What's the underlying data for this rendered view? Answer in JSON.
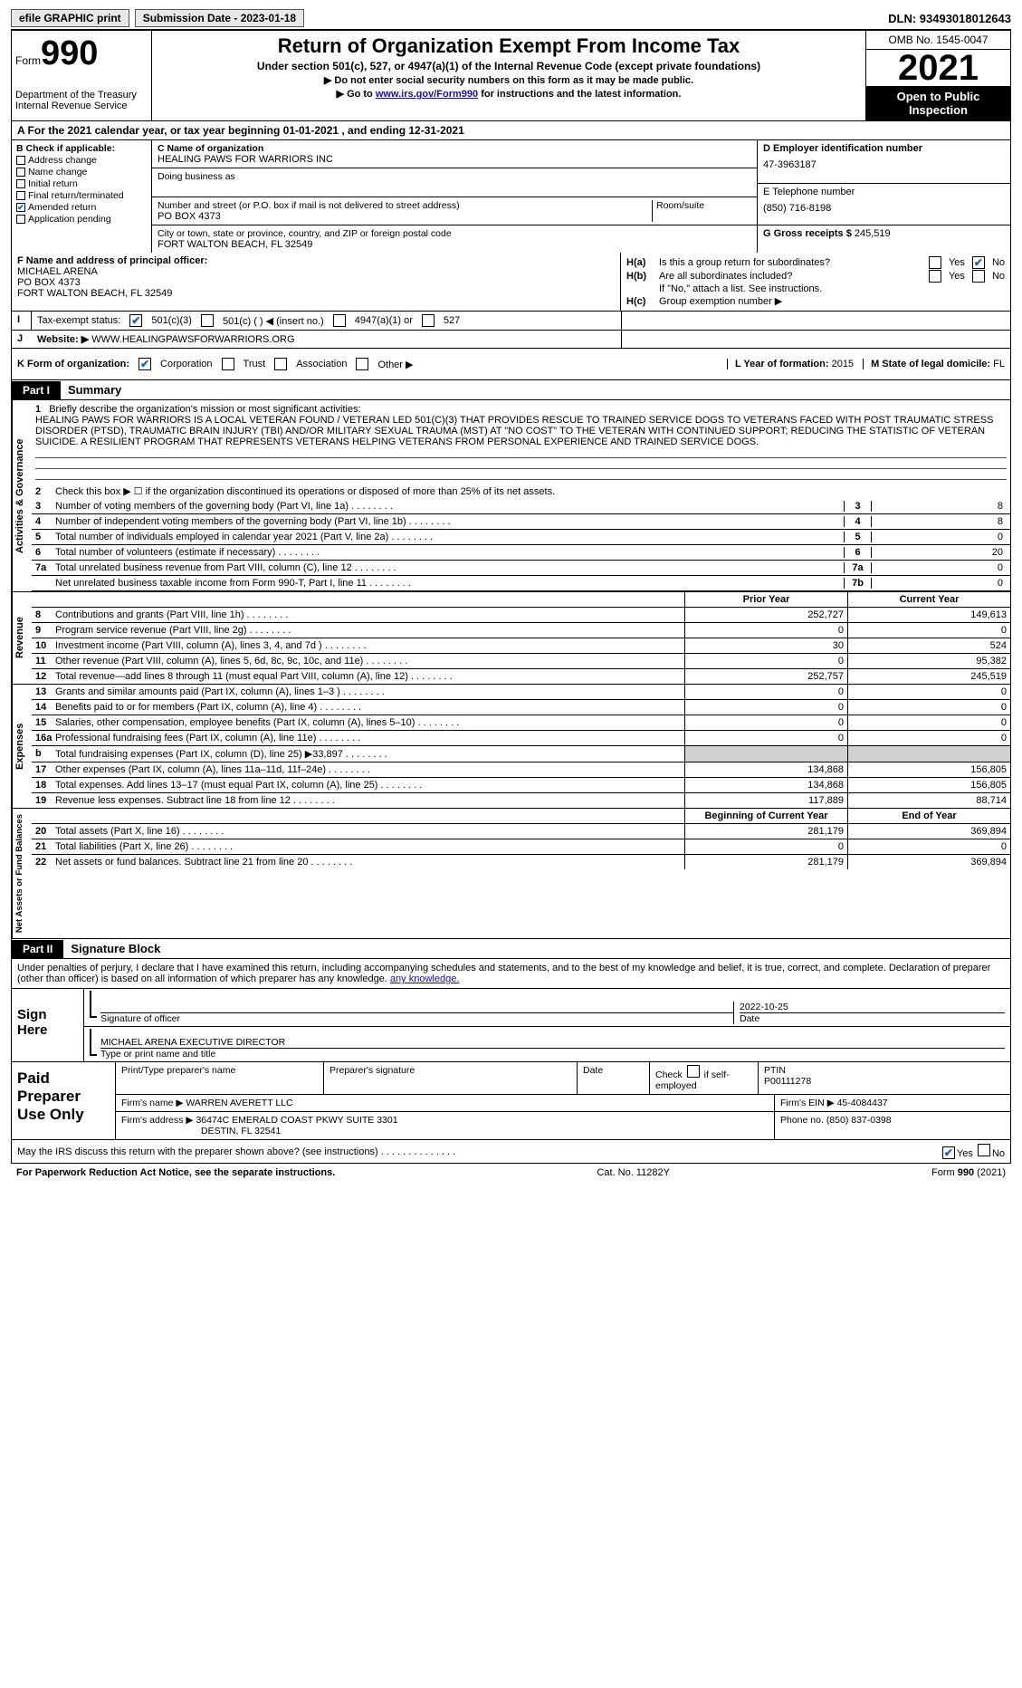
{
  "topbar": {
    "efile": "efile GRAPHIC print",
    "submission": "Submission Date - 2023-01-18",
    "dln": "DLN: 93493018012643"
  },
  "header": {
    "form_word": "Form",
    "form_num": "990",
    "dept": "Department of the Treasury",
    "irs": "Internal Revenue Service",
    "title": "Return of Organization Exempt From Income Tax",
    "subtitle": "Under section 501(c), 527, or 4947(a)(1) of the Internal Revenue Code (except private foundations)",
    "instr1": "▶ Do not enter social security numbers on this form as it may be made public.",
    "instr2_pre": "▶ Go to ",
    "instr2_link": "www.irs.gov/Form990",
    "instr2_post": " for instructions and the latest information.",
    "omb": "OMB No. 1545-0047",
    "year": "2021",
    "otp": "Open to Public Inspection"
  },
  "line_a": "A For the 2021 calendar year, or tax year beginning 01-01-2021    , and ending 12-31-2021",
  "col_b": {
    "hdr": "B Check if applicable:",
    "items": [
      "Address change",
      "Name change",
      "Initial return",
      "Final return/terminated",
      "Amended return",
      "Application pending"
    ],
    "checked_idx": 4
  },
  "col_c": {
    "name_lbl": "C Name of organization",
    "name": "HEALING PAWS FOR WARRIORS INC",
    "dba_lbl": "Doing business as",
    "street_lbl": "Number and street (or P.O. box if mail is not delivered to street address)",
    "street": "PO BOX 4373",
    "room_lbl": "Room/suite",
    "city_lbl": "City or town, state or province, country, and ZIP or foreign postal code",
    "city": "FORT WALTON BEACH, FL  32549"
  },
  "col_d": {
    "ein_lbl": "D Employer identification number",
    "ein": "47-3963187",
    "phone_lbl": "E Telephone number",
    "phone": "(850) 716-8198",
    "gross_lbl": "G Gross receipts $",
    "gross": "245,519"
  },
  "col_f": {
    "lbl": "F Name and address of principal officer:",
    "name": "MICHAEL ARENA",
    "addr1": "PO BOX 4373",
    "addr2": "FORT WALTON BEACH, FL  32549"
  },
  "col_h": {
    "ha_lbl": "H(a)",
    "ha_q": "Is this a group return for subordinates?",
    "hb_lbl": "H(b)",
    "hb_q": "Are all subordinates included?",
    "note": "If \"No,\" attach a list. See instructions.",
    "hc_lbl": "H(c)",
    "hc_q": "Group exemption number ▶",
    "yes": "Yes",
    "no": "No"
  },
  "tax_status": {
    "lbl_i": "I",
    "lbl": "Tax-exempt status:",
    "opts": [
      "501(c)(3)",
      "501(c) (  ) ◀ (insert no.)",
      "4947(a)(1) or",
      "527"
    ]
  },
  "j_row": {
    "lbl": "J",
    "web_lbl": "Website: ▶",
    "web": "WWW.HEALINGPAWSFORWARRIORS.ORG"
  },
  "k_row": {
    "lbl": "K Form of organization:",
    "opts": [
      "Corporation",
      "Trust",
      "Association",
      "Other ▶"
    ],
    "checked_idx": 0,
    "l_lbl": "L Year of formation:",
    "l_val": "2015",
    "m_lbl": "M State of legal domicile:",
    "m_val": "FL"
  },
  "part1": {
    "tag": "Part I",
    "title": "Summary"
  },
  "vtabs": [
    "Activities & Governance",
    "Revenue",
    "Expenses",
    "Net Assets or Fund Balances"
  ],
  "mission": {
    "num": "1",
    "lbl": "Briefly describe the organization's mission or most significant activities:",
    "text": "HEALING PAWS FOR WARRIORS IS A LOCAL VETERAN FOUND / VETERAN LED 501(C)(3) THAT PROVIDES RESCUE TO TRAINED SERVICE DOGS TO VETERANS FACED WITH POST TRAUMATIC STRESS DISORDER (PTSD), TRAUMATIC BRAIN INJURY (TBI) AND/OR MILITARY SEXUAL TRAUMA (MST) AT \"NO COST\" TO THE VETERAN WITH CONTINUED SUPPORT; REDUCING THE STATISTIC OF VETERAN SUICIDE. A RESILIENT PROGRAM THAT REPRESENTS VETERANS HELPING VETERANS FROM PERSONAL EXPERIENCE AND TRAINED SERVICE DOGS."
  },
  "gov_rows": [
    {
      "n": "2",
      "t": "Check this box ▶ ☐  if the organization discontinued its operations or disposed of more than 25% of its net assets.",
      "c": "",
      "v": ""
    },
    {
      "n": "3",
      "t": "Number of voting members of the governing body (Part VI, line 1a)",
      "c": "3",
      "v": "8"
    },
    {
      "n": "4",
      "t": "Number of independent voting members of the governing body (Part VI, line 1b)",
      "c": "4",
      "v": "8"
    },
    {
      "n": "5",
      "t": "Total number of individuals employed in calendar year 2021 (Part V, line 2a)",
      "c": "5",
      "v": "0"
    },
    {
      "n": "6",
      "t": "Total number of volunteers (estimate if necessary)",
      "c": "6",
      "v": "20"
    },
    {
      "n": "7a",
      "t": "Total unrelated business revenue from Part VIII, column (C), line 12",
      "c": "7a",
      "v": "0"
    },
    {
      "n": "",
      "t": "Net unrelated business taxable income from Form 990-T, Part I, line 11",
      "c": "7b",
      "v": "0"
    }
  ],
  "rev_hdr": {
    "prior": "Prior Year",
    "curr": "Current Year"
  },
  "rev_rows": [
    {
      "n": "8",
      "t": "Contributions and grants (Part VIII, line 1h)",
      "p": "252,727",
      "c": "149,613"
    },
    {
      "n": "9",
      "t": "Program service revenue (Part VIII, line 2g)",
      "p": "0",
      "c": "0"
    },
    {
      "n": "10",
      "t": "Investment income (Part VIII, column (A), lines 3, 4, and 7d )",
      "p": "30",
      "c": "524"
    },
    {
      "n": "11",
      "t": "Other revenue (Part VIII, column (A), lines 5, 6d, 8c, 9c, 10c, and 11e)",
      "p": "0",
      "c": "95,382"
    },
    {
      "n": "12",
      "t": "Total revenue—add lines 8 through 11 (must equal Part VIII, column (A), line 12)",
      "p": "252,757",
      "c": "245,519"
    }
  ],
  "exp_rows": [
    {
      "n": "13",
      "t": "Grants and similar amounts paid (Part IX, column (A), lines 1–3 )",
      "p": "0",
      "c": "0"
    },
    {
      "n": "14",
      "t": "Benefits paid to or for members (Part IX, column (A), line 4)",
      "p": "0",
      "c": "0"
    },
    {
      "n": "15",
      "t": "Salaries, other compensation, employee benefits (Part IX, column (A), lines 5–10)",
      "p": "0",
      "c": "0"
    },
    {
      "n": "16a",
      "t": "Professional fundraising fees (Part IX, column (A), line 11e)",
      "p": "0",
      "c": "0"
    },
    {
      "n": "b",
      "t": "Total fundraising expenses (Part IX, column (D), line 25) ▶33,897",
      "p": "",
      "c": "",
      "shade": true
    },
    {
      "n": "17",
      "t": "Other expenses (Part IX, column (A), lines 11a–11d, 11f–24e)",
      "p": "134,868",
      "c": "156,805"
    },
    {
      "n": "18",
      "t": "Total expenses. Add lines 13–17 (must equal Part IX, column (A), line 25)",
      "p": "134,868",
      "c": "156,805"
    },
    {
      "n": "19",
      "t": "Revenue less expenses. Subtract line 18 from line 12",
      "p": "117,889",
      "c": "88,714"
    }
  ],
  "net_hdr": {
    "prior": "Beginning of Current Year",
    "curr": "End of Year"
  },
  "net_rows": [
    {
      "n": "20",
      "t": "Total assets (Part X, line 16)",
      "p": "281,179",
      "c": "369,894"
    },
    {
      "n": "21",
      "t": "Total liabilities (Part X, line 26)",
      "p": "0",
      "c": "0"
    },
    {
      "n": "22",
      "t": "Net assets or fund balances. Subtract line 21 from line 20",
      "p": "281,179",
      "c": "369,894"
    }
  ],
  "part2": {
    "tag": "Part II",
    "title": "Signature Block"
  },
  "sig_decl": "Under penalties of perjury, I declare that I have examined this return, including accompanying schedules and statements, and to the best of my knowledge and belief, it is true, correct, and complete. Declaration of preparer (other than officer) is based on all information of which preparer has any knowledge.",
  "sign": {
    "left": "Sign Here",
    "sig_lbl": "Signature of officer",
    "date_lbl": "Date",
    "date": "2022-10-25",
    "name": "MICHAEL ARENA  EXECUTIVE DIRECTOR",
    "name_lbl": "Type or print name and title"
  },
  "prep": {
    "left": "Paid Preparer Use Only",
    "r1_c1": "Print/Type preparer's name",
    "r1_c2": "Preparer's signature",
    "r1_c3": "Date",
    "r1_c4_pre": "Check",
    "r1_c4_post": "if self-employed",
    "r1_c5_lbl": "PTIN",
    "r1_c5": "P00111278",
    "r2_lbl": "Firm's name   ▶",
    "r2_val": "WARREN AVERETT LLC",
    "r2_ein_lbl": "Firm's EIN ▶",
    "r2_ein": "45-4084437",
    "r3_lbl": "Firm's address ▶",
    "r3_val1": "36474C EMERALD COAST PKWY SUITE 3301",
    "r3_val2": "DESTIN, FL  32541",
    "r3_ph_lbl": "Phone no.",
    "r3_ph": "(850) 837-0398"
  },
  "may_row": {
    "q": "May the IRS discuss this return with the preparer shown above? (see instructions)",
    "yes": "Yes",
    "no": "No"
  },
  "footer": {
    "left": "For Paperwork Reduction Act Notice, see the separate instructions.",
    "mid": "Cat. No. 11282Y",
    "right_pre": "Form ",
    "right_num": "990",
    "right_post": " (2021)"
  }
}
